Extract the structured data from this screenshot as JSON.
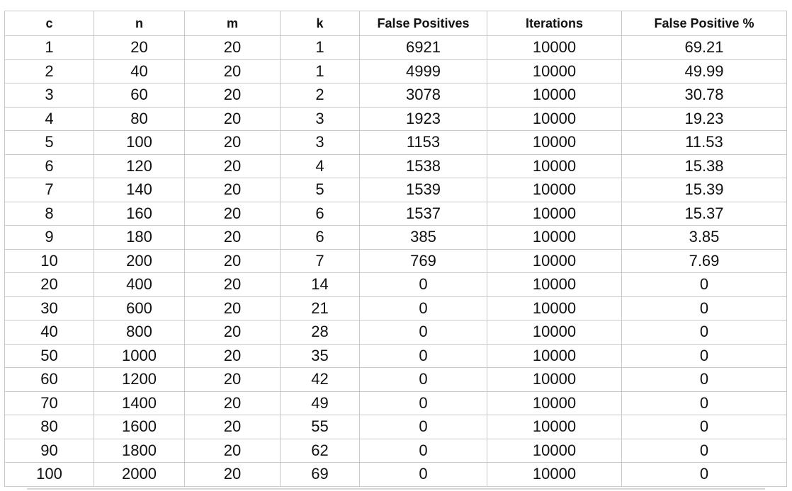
{
  "table": {
    "headers": [
      "c",
      "n",
      "m",
      "k",
      "False Positives",
      "Iterations",
      "False Positive %"
    ],
    "rows": [
      [
        "1",
        "20",
        "20",
        "1",
        "6921",
        "10000",
        "69.21"
      ],
      [
        "2",
        "40",
        "20",
        "1",
        "4999",
        "10000",
        "49.99"
      ],
      [
        "3",
        "60",
        "20",
        "2",
        "3078",
        "10000",
        "30.78"
      ],
      [
        "4",
        "80",
        "20",
        "3",
        "1923",
        "10000",
        "19.23"
      ],
      [
        "5",
        "100",
        "20",
        "3",
        "1153",
        "10000",
        "11.53"
      ],
      [
        "6",
        "120",
        "20",
        "4",
        "1538",
        "10000",
        "15.38"
      ],
      [
        "7",
        "140",
        "20",
        "5",
        "1539",
        "10000",
        "15.39"
      ],
      [
        "8",
        "160",
        "20",
        "6",
        "1537",
        "10000",
        "15.37"
      ],
      [
        "9",
        "180",
        "20",
        "6",
        "385",
        "10000",
        "3.85"
      ],
      [
        "10",
        "200",
        "20",
        "7",
        "769",
        "10000",
        "7.69"
      ],
      [
        "20",
        "400",
        "20",
        "14",
        "0",
        "10000",
        "0"
      ],
      [
        "30",
        "600",
        "20",
        "21",
        "0",
        "10000",
        "0"
      ],
      [
        "40",
        "800",
        "20",
        "28",
        "0",
        "10000",
        "0"
      ],
      [
        "50",
        "1000",
        "20",
        "35",
        "0",
        "10000",
        "0"
      ],
      [
        "60",
        "1200",
        "20",
        "42",
        "0",
        "10000",
        "0"
      ],
      [
        "70",
        "1400",
        "20",
        "49",
        "0",
        "10000",
        "0"
      ],
      [
        "80",
        "1600",
        "20",
        "55",
        "0",
        "10000",
        "0"
      ],
      [
        "90",
        "1800",
        "20",
        "62",
        "0",
        "10000",
        "0"
      ],
      [
        "100",
        "2000",
        "20",
        "69",
        "0",
        "10000",
        "0"
      ]
    ]
  }
}
